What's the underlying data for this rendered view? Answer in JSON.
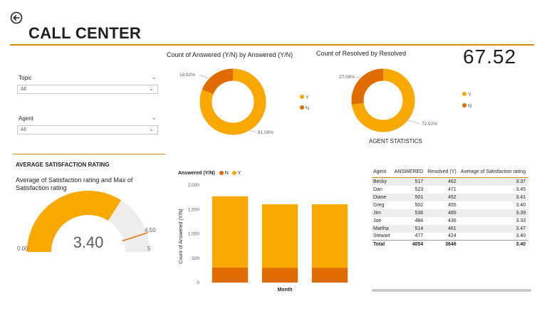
{
  "header": {
    "title": "CALL CENTER",
    "kpi_value": "67.52"
  },
  "colors": {
    "primary": "#F8A800",
    "secondary": "#E06C00",
    "accent_rule": "#D08B00",
    "gauge_track": "#EFEDEB"
  },
  "filters": {
    "topic": {
      "label": "Topic",
      "value": "All"
    },
    "agent": {
      "label": "Agent",
      "value": "All"
    }
  },
  "satisfaction": {
    "section_title": "AVERAGE SATISFACTION RATING",
    "gauge_title": "Average of Satisfaction rating and Max of Satisfaction rating",
    "value": 3.4,
    "value_label": "3.40",
    "min": 0,
    "min_label": "0.00",
    "max": 5,
    "max_label": "5",
    "target": 4.5,
    "target_label": "4.50"
  },
  "agent_statistics": {
    "title": "AGENT STATISTICS",
    "columns": [
      "Agent",
      "ANSWERED",
      "Resolved (Y)",
      "Average of Satisfaction rating"
    ],
    "rows": [
      [
        "Becky",
        "517",
        "462",
        "3.37"
      ],
      [
        "Dan",
        "523",
        "471",
        "3.45"
      ],
      [
        "Diane",
        "501",
        "452",
        "3.41"
      ],
      [
        "Greg",
        "502",
        "455",
        "3.40"
      ],
      [
        "Jim",
        "536",
        "485",
        "3.39"
      ],
      [
        "Joe",
        "484",
        "436",
        "3.33"
      ],
      [
        "Martha",
        "514",
        "461",
        "3.47"
      ],
      [
        "Stewart",
        "477",
        "424",
        "3.40"
      ]
    ],
    "total": [
      "Total",
      "4054",
      "3646",
      "3.40"
    ]
  },
  "chart_data": [
    {
      "type": "pie",
      "title": "Count of Answered (Y/N) by Answered (Y/N)",
      "categories": [
        "Y",
        "N"
      ],
      "values": [
        81.08,
        18.92
      ],
      "labels": [
        "81.08%",
        "18.92%"
      ],
      "legend": [
        "Y",
        "N"
      ]
    },
    {
      "type": "pie",
      "title": "Count of Resolved by Resolved",
      "categories": [
        "Y",
        "N"
      ],
      "values": [
        72.92,
        27.08
      ],
      "labels": [
        "72.92%",
        "27.08%"
      ],
      "legend": [
        "Y",
        "N"
      ]
    },
    {
      "type": "bar",
      "title": "Answered (Y/N)",
      "legend": [
        "N",
        "Y"
      ],
      "xlabel": "Month",
      "ylabel": "Count of Answered (Y/N)",
      "ylim": [
        0,
        2000
      ],
      "yticks": [
        "0",
        "500",
        "1,000",
        "1,500",
        "2,000"
      ],
      "categories": [
        "",
        "",
        ""
      ],
      "series": [
        {
          "name": "N",
          "values": [
            310,
            305,
            305
          ]
        },
        {
          "name": "Y",
          "values": [
            1460,
            1300,
            1300
          ]
        }
      ]
    }
  ]
}
